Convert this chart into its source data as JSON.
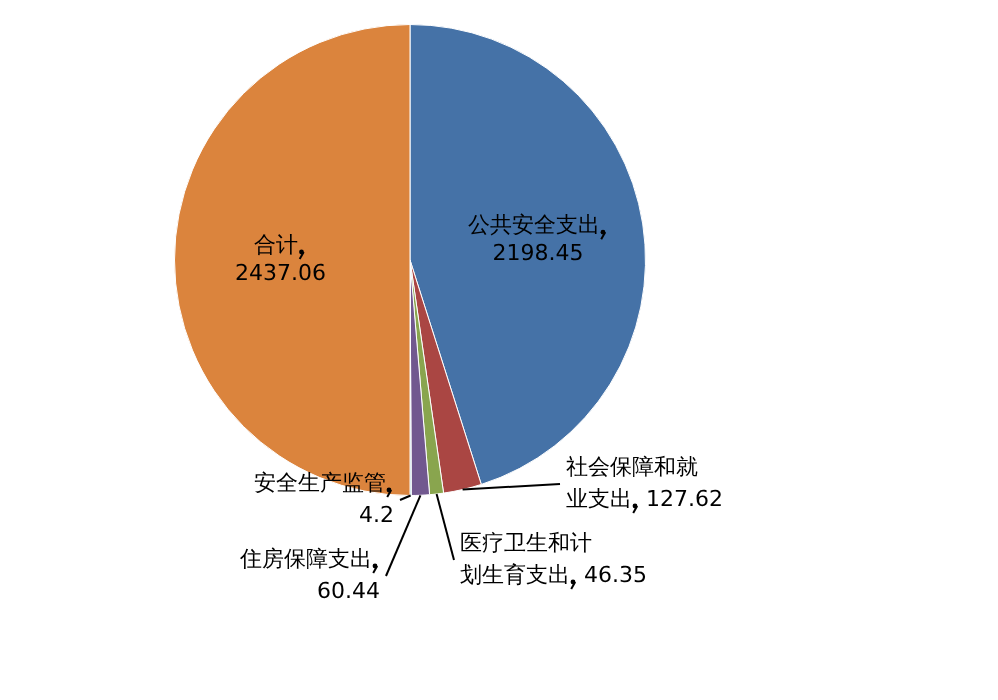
{
  "chart_data": {
    "type": "pie",
    "categories": [
      "公共安全支出",
      "社会保障和就业支出",
      "医疗卫生和计划生育支出",
      "住房保障支出",
      "安全生产监管",
      "合计"
    ],
    "values": [
      2198.45,
      127.62,
      46.35,
      60.44,
      4.2,
      2437.06
    ],
    "colors": [
      "#4572a7",
      "#aa4643",
      "#89a54e",
      "#71588f",
      "#4198af",
      "#db843d"
    ],
    "data_labels": true,
    "legend": false
  }
}
